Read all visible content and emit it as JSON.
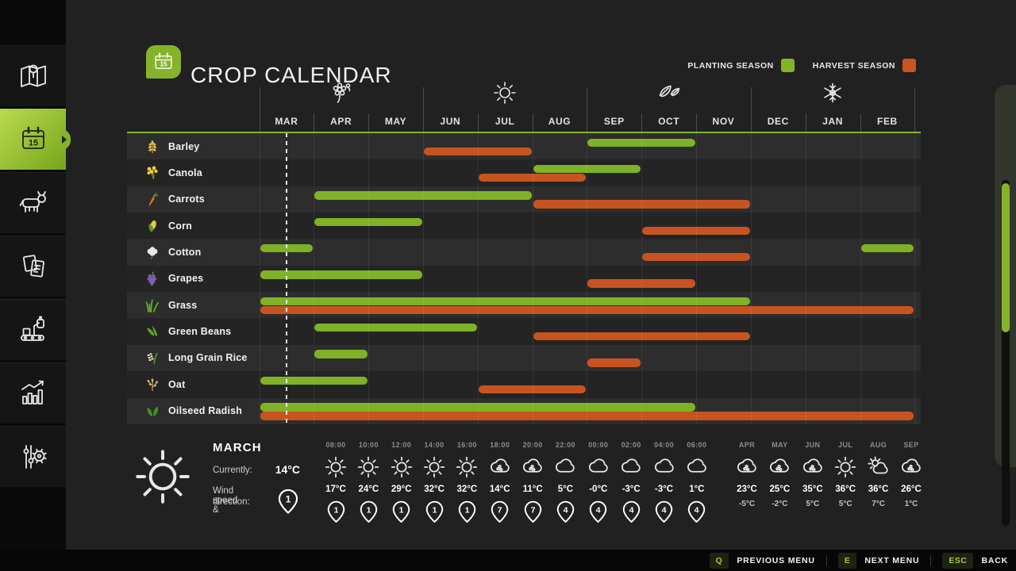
{
  "app": {
    "title": "CROP CALENDAR"
  },
  "legend": [
    {
      "label": "PLANTING SEASON",
      "color": "#83b427"
    },
    {
      "label": "HARVEST SEASON",
      "color": "#c85520"
    }
  ],
  "sidebar": {
    "items": [
      {
        "name": "map",
        "icon": "map-icon",
        "selected": false
      },
      {
        "name": "calendar",
        "icon": "calendar-icon",
        "selected": true,
        "day": "15"
      },
      {
        "name": "animals",
        "icon": "animals-icon",
        "selected": false
      },
      {
        "name": "contracts",
        "icon": "contracts-icon",
        "selected": false
      },
      {
        "name": "production",
        "icon": "production-icon",
        "selected": false
      },
      {
        "name": "statistics",
        "icon": "statistics-icon",
        "selected": false
      },
      {
        "name": "settings",
        "icon": "settings-icon",
        "selected": false
      }
    ]
  },
  "chart_data": {
    "type": "gantt-calendar",
    "months": [
      "MAR",
      "APR",
      "MAY",
      "JUN",
      "JUL",
      "AUG",
      "SEP",
      "OCT",
      "NOV",
      "DEC",
      "JAN",
      "FEB"
    ],
    "seasons": [
      {
        "icon": "spring-flower-icon",
        "month": "APR"
      },
      {
        "icon": "summer-sun-icon",
        "month": "JUL"
      },
      {
        "icon": "autumn-leaves-icon",
        "month": "OCT"
      },
      {
        "icon": "winter-snowflake-icon",
        "month": "JAN"
      }
    ],
    "current_day": {
      "month": "MAR",
      "fraction": 0.5
    },
    "colors": {
      "planting": "#7fb226",
      "harvest": "#c75420"
    },
    "crops": [
      {
        "name": "Barley",
        "icon": "barley-icon",
        "planting": [
          [
            "SEP",
            "OCT"
          ]
        ],
        "harvest": [
          [
            "JUN",
            "JUL"
          ]
        ]
      },
      {
        "name": "Canola",
        "icon": "canola-icon",
        "planting": [
          [
            "AUG",
            "SEP"
          ]
        ],
        "harvest": [
          [
            "JUL",
            "AUG"
          ]
        ]
      },
      {
        "name": "Carrots",
        "icon": "carrots-icon",
        "planting": [
          [
            "APR",
            "JUL"
          ]
        ],
        "harvest": [
          [
            "AUG",
            "NOV"
          ]
        ]
      },
      {
        "name": "Corn",
        "icon": "corn-icon",
        "planting": [
          [
            "APR",
            "MAY"
          ]
        ],
        "harvest": [
          [
            "OCT",
            "NOV"
          ]
        ]
      },
      {
        "name": "Cotton",
        "icon": "cotton-icon",
        "planting": [
          [
            "MAR",
            "MAR"
          ],
          [
            "FEB",
            "FEB"
          ]
        ],
        "harvest": [
          [
            "OCT",
            "NOV"
          ]
        ]
      },
      {
        "name": "Grapes",
        "icon": "grapes-icon",
        "planting": [
          [
            "MAR",
            "MAY"
          ]
        ],
        "harvest": [
          [
            "SEP",
            "OCT"
          ]
        ]
      },
      {
        "name": "Grass",
        "icon": "grass-icon",
        "planting": [
          [
            "MAR",
            "NOV"
          ]
        ],
        "harvest": [
          [
            "MAR",
            "FEB"
          ]
        ]
      },
      {
        "name": "Green Beans",
        "icon": "green-beans-icon",
        "planting": [
          [
            "APR",
            "JUN"
          ]
        ],
        "harvest": [
          [
            "AUG",
            "NOV"
          ]
        ]
      },
      {
        "name": "Long Grain Rice",
        "icon": "rice-icon",
        "planting": [
          [
            "APR",
            "APR"
          ]
        ],
        "harvest": [
          [
            "SEP",
            "SEP"
          ]
        ]
      },
      {
        "name": "Oat",
        "icon": "oat-icon",
        "planting": [
          [
            "MAR",
            "APR"
          ]
        ],
        "harvest": [
          [
            "JUL",
            "AUG"
          ]
        ]
      },
      {
        "name": "Oilseed Radish",
        "icon": "radish-icon",
        "planting": [
          [
            "MAR",
            "OCT"
          ]
        ],
        "harvest": [
          [
            "MAR",
            "FEB"
          ]
        ]
      }
    ]
  },
  "weather": {
    "current": {
      "month": "MARCH",
      "icon": "sun-icon",
      "currently_label": "Currently:",
      "temperature": "14°C",
      "wind_label_line1": "Wind speed &",
      "wind_label_line2": "direction:",
      "wind_value": "1"
    },
    "hourly": [
      {
        "time": "08:00",
        "icon": "sun-icon",
        "temp": "17°C",
        "wind": "1"
      },
      {
        "time": "10:00",
        "icon": "sun-icon",
        "temp": "24°C",
        "wind": "1"
      },
      {
        "time": "12:00",
        "icon": "sun-icon",
        "temp": "29°C",
        "wind": "1"
      },
      {
        "time": "14:00",
        "icon": "sun-icon",
        "temp": "32°C",
        "wind": "1"
      },
      {
        "time": "16:00",
        "icon": "sun-icon",
        "temp": "32°C",
        "wind": "1"
      },
      {
        "time": "18:00",
        "icon": "rain-icon",
        "temp": "14°C",
        "wind": "7"
      },
      {
        "time": "20:00",
        "icon": "rain-icon",
        "temp": "11°C",
        "wind": "7"
      },
      {
        "time": "22:00",
        "icon": "cloud-icon",
        "temp": "5°C",
        "wind": "4"
      },
      {
        "time": "00:00",
        "icon": "cloud-icon",
        "temp": "-0°C",
        "wind": "4"
      },
      {
        "time": "02:00",
        "icon": "cloud-icon",
        "temp": "-3°C",
        "wind": "4"
      },
      {
        "time": "04:00",
        "icon": "cloud-icon",
        "temp": "-3°C",
        "wind": "4"
      },
      {
        "time": "06:00",
        "icon": "cloud-icon",
        "temp": "1°C",
        "wind": "4"
      }
    ],
    "monthly": [
      {
        "month": "APR",
        "icon": "rain-icon",
        "high": "23°C",
        "low": "-5°C"
      },
      {
        "month": "MAY",
        "icon": "rain-icon",
        "high": "25°C",
        "low": "-2°C"
      },
      {
        "month": "JUN",
        "icon": "rain-icon",
        "high": "35°C",
        "low": "5°C"
      },
      {
        "month": "JUL",
        "icon": "sun-icon",
        "high": "36°C",
        "low": "5°C"
      },
      {
        "month": "AUG",
        "icon": "partly-sun-icon",
        "high": "36°C",
        "low": "7°C"
      },
      {
        "month": "SEP",
        "icon": "rain-icon",
        "high": "26°C",
        "low": "1°C"
      }
    ]
  },
  "bottom_bar": {
    "items": [
      {
        "key": "Q",
        "label": "PREVIOUS MENU"
      },
      {
        "key": "E",
        "label": "NEXT MENU"
      },
      {
        "key": "ESC",
        "label": "BACK"
      }
    ]
  }
}
